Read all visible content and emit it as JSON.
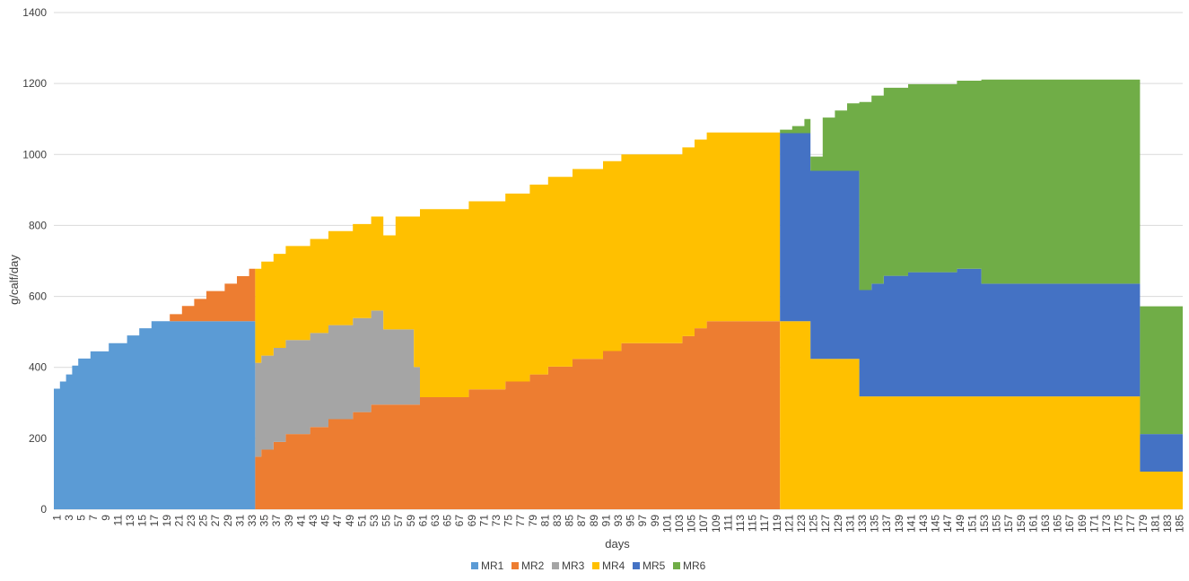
{
  "chart_data": {
    "type": "area",
    "title": "",
    "xlabel": "days",
    "ylabel": "g/calf/day",
    "ylim": [
      0,
      1400
    ],
    "yticks": [
      0,
      200,
      400,
      600,
      800,
      1000,
      1200,
      1400
    ],
    "xlim": [
      1,
      185
    ],
    "grid": "horizontal",
    "legend_position": "bottom",
    "stacked": true,
    "series": [
      {
        "name": "MR1",
        "color": "#5B9BD5",
        "points": [
          [
            1,
            340
          ],
          [
            2,
            360
          ],
          [
            3,
            380
          ],
          [
            4,
            405
          ],
          [
            5,
            425
          ],
          [
            7,
            445
          ],
          [
            10,
            468
          ],
          [
            13,
            490
          ],
          [
            15,
            510
          ],
          [
            17,
            530
          ],
          [
            34,
            0
          ]
        ]
      },
      {
        "name": "MR2",
        "color": "#ED7D31",
        "points": [
          [
            1,
            0
          ],
          [
            20,
            20
          ],
          [
            22,
            43
          ],
          [
            24,
            63
          ],
          [
            26,
            85
          ],
          [
            29,
            106
          ],
          [
            31,
            127
          ],
          [
            33,
            148
          ],
          [
            34,
            148
          ],
          [
            35,
            168
          ],
          [
            37,
            190
          ],
          [
            39,
            212
          ],
          [
            43,
            232
          ],
          [
            46,
            254
          ],
          [
            50,
            274
          ],
          [
            53,
            295
          ],
          [
            61,
            316
          ],
          [
            69,
            338
          ],
          [
            75,
            360
          ],
          [
            79,
            380
          ],
          [
            82,
            402
          ],
          [
            86,
            424
          ],
          [
            91,
            446
          ],
          [
            94,
            468
          ],
          [
            104,
            488
          ],
          [
            106,
            510
          ],
          [
            108,
            530
          ],
          [
            120,
            0
          ]
        ]
      },
      {
        "name": "MR3",
        "color": "#A5A5A5",
        "points": [
          [
            1,
            0
          ],
          [
            34,
            265
          ],
          [
            35,
            265
          ],
          [
            36,
            265
          ],
          [
            38,
            265
          ],
          [
            40,
            265
          ],
          [
            43,
            265
          ],
          [
            46,
            265
          ],
          [
            50,
            265
          ],
          [
            53,
            265
          ],
          [
            55,
            212
          ],
          [
            60,
            106
          ],
          [
            61,
            0
          ]
        ]
      },
      {
        "name": "MR4",
        "color": "#FFC000",
        "points": [
          [
            1,
            0
          ],
          [
            34,
            265
          ],
          [
            35,
            265
          ],
          [
            37,
            265
          ],
          [
            39,
            265
          ],
          [
            43,
            265
          ],
          [
            46,
            265
          ],
          [
            50,
            265
          ],
          [
            53,
            265
          ],
          [
            55,
            265
          ],
          [
            57,
            318
          ],
          [
            60,
            424
          ],
          [
            61,
            530
          ],
          [
            69,
            530
          ],
          [
            75,
            530
          ],
          [
            79,
            535
          ],
          [
            82,
            535
          ],
          [
            86,
            535
          ],
          [
            91,
            535
          ],
          [
            94,
            532
          ],
          [
            104,
            532
          ],
          [
            106,
            532
          ],
          [
            108,
            532
          ],
          [
            120,
            530
          ],
          [
            125,
            424
          ],
          [
            133,
            318
          ],
          [
            179,
            106
          ],
          [
            186,
            0
          ]
        ]
      },
      {
        "name": "MR5",
        "color": "#4472C4",
        "points": [
          [
            1,
            0
          ],
          [
            120,
            530
          ],
          [
            125,
            530
          ],
          [
            133,
            300
          ],
          [
            135,
            318
          ],
          [
            137,
            340
          ],
          [
            141,
            350
          ],
          [
            149,
            360
          ],
          [
            153,
            318
          ],
          [
            179,
            106
          ],
          [
            186,
            0
          ]
        ]
      },
      {
        "name": "MR6",
        "color": "#70AD47",
        "points": [
          [
            1,
            0
          ],
          [
            120,
            10
          ],
          [
            122,
            20
          ],
          [
            124,
            40
          ],
          [
            127,
            150
          ],
          [
            129,
            170
          ],
          [
            131,
            190
          ],
          [
            133,
            530
          ],
          [
            135,
            530
          ],
          [
            137,
            530
          ],
          [
            141,
            530
          ],
          [
            145,
            530
          ],
          [
            149,
            530
          ],
          [
            153,
            575
          ],
          [
            179,
            360
          ],
          [
            186,
            0
          ]
        ]
      }
    ],
    "x_tick_labels": [
      "1",
      "3",
      "5",
      "7",
      "9",
      "11",
      "13",
      "15",
      "17",
      "19",
      "21",
      "23",
      "25",
      "27",
      "29",
      "31",
      "33",
      "35",
      "37",
      "39",
      "41",
      "43",
      "45",
      "47",
      "49",
      "51",
      "53",
      "55",
      "57",
      "59",
      "61",
      "63",
      "65",
      "67",
      "69",
      "71",
      "73",
      "75",
      "77",
      "79",
      "81",
      "83",
      "85",
      "87",
      "89",
      "91",
      "93",
      "95",
      "97",
      "99",
      "101",
      "103",
      "105",
      "107",
      "109",
      "111",
      "113",
      "115",
      "117",
      "119",
      "121",
      "123",
      "125",
      "127",
      "129",
      "131",
      "133",
      "135",
      "137",
      "139",
      "141",
      "143",
      "145",
      "147",
      "149",
      "151",
      "153",
      "155",
      "157",
      "159",
      "161",
      "163",
      "165",
      "167",
      "169",
      "171",
      "173",
      "175",
      "177",
      "179",
      "181",
      "183",
      "185"
    ]
  }
}
